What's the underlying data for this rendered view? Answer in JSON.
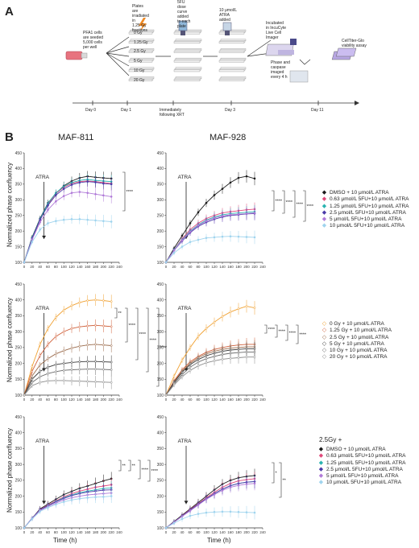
{
  "panelA": {
    "letter": "A",
    "steps": {
      "seed": [
        "PFA1 cells",
        "are seeded",
        "5,000 cells",
        "per well"
      ],
      "irradiate": [
        "Plates",
        "are",
        "irradiated",
        "in",
        "1.25 Gy",
        "fractions"
      ],
      "fu": [
        "5FU",
        "dose",
        "curve",
        "added",
        "to each",
        "plate"
      ],
      "atra": [
        "10 μmol/L",
        "ATRA",
        "added"
      ],
      "incubate": [
        "Incubated",
        "in IncuCyte",
        "Live Cell",
        "Imager"
      ],
      "phase": [
        "Phase and",
        "caspase",
        "imaged",
        "every 4 h"
      ],
      "ctg": [
        "CellTiter-Glo",
        "viability assay"
      ]
    },
    "doses": [
      "0 Gy",
      "1.25 Gy",
      "2.5 Gy",
      "5 Gy",
      "10 Gy",
      "20 Gy"
    ],
    "timeline": [
      "Day 0",
      "Day 1",
      "Immediately following XRT",
      "Day 3",
      "Day 11"
    ]
  },
  "panelB": {
    "letter": "B",
    "col_titles": [
      "MAF-811",
      "MAF-928"
    ],
    "ylabel": "Normalized phase confluency",
    "xlabel": "Time (h)",
    "atra_label": "ATRA",
    "y_ticks": [
      "100",
      "150",
      "200",
      "250",
      "300",
      "350",
      "400",
      "450"
    ],
    "x_ticks": [
      "0",
      "20",
      "40",
      "60",
      "80",
      "100",
      "120",
      "140",
      "160",
      "180",
      "200",
      "220",
      "240"
    ],
    "legend_row1": [
      "DMSO + 10 μmol/L ATRA",
      "0.63 μmol/L 5FU+10 μmol/L ATRA",
      "1.25 μmol/L 5FU+10 μmol/L ATRA",
      "2.5 μmol/L 5FU+10 μmol/L ATRA",
      "5 μmol/L 5FU+10 μmol/L ATRA",
      "10 μmol/L 5FU+10 μmol/L ATRA"
    ],
    "legend_row2": [
      "0 Gy + 10 μmol/L ATRA",
      "1.25 Gy + 10 μmol/L ATRA",
      "2.5 Gy + 10 μmol/L ATRA",
      "5 Gy + 10 μmol/L ATRA",
      "10 Gy + 10 μmol/L ATRA",
      "20 Gy + 10 μmol/L ATRA"
    ],
    "legend_row3_title": "2.5Gy +",
    "legend_row3": [
      "DMSO + 10 μmol/L ATRA",
      "0.63 μmol/L 5FU+10 μmol/L ATRA",
      "1.25 μmol/L 5FU+10 μmol/L ATRA",
      "2.5 μmol/L 5FU+10 μmol/L ATRA",
      "5 μmol/L 5FU+10 μmol/L ATRA",
      "10 μmol/L 5FU+10 μmol/L ATRA"
    ],
    "sig": {
      "r1l": [
        "****"
      ],
      "r1r": [
        "****",
        "****",
        "****",
        "****"
      ],
      "r2l": [
        "**",
        "****",
        "****",
        "****",
        "****"
      ],
      "r2r": [
        "****",
        "****",
        "****",
        "****"
      ],
      "r3l": [
        "**",
        "**",
        "****",
        "****"
      ],
      "r3r": [
        "*",
        "**"
      ]
    },
    "colors": [
      "#1a1a1a",
      "#e0487a",
      "#2ab3b0",
      "#4a3aa8",
      "#b07ad8",
      "#9fd4ee"
    ],
    "colors_row2": [
      "#f0a030",
      "#d0603a",
      "#9a6a4a",
      "#3a3a3a",
      "#6a6a6a",
      "#8a8a8a"
    ]
  },
  "chart_data": [
    {
      "type": "line",
      "title": "MAF-811",
      "xlabel": "Time (h)",
      "ylabel": "Normalized phase confluency",
      "ylim": [
        100,
        450
      ],
      "x": [
        0,
        20,
        40,
        60,
        80,
        100,
        120,
        140,
        160,
        180,
        200,
        220
      ],
      "series": [
        {
          "name": "DMSO + 10 μmol/L ATRA",
          "values": [
            100,
            180,
            240,
            290,
            320,
            345,
            360,
            370,
            375,
            372,
            370,
            368
          ]
        },
        {
          "name": "0.63 μmol/L 5FU+10 μmol/L ATRA",
          "values": [
            100,
            175,
            235,
            285,
            320,
            340,
            352,
            358,
            360,
            358,
            355,
            352
          ]
        },
        {
          "name": "1.25 μmol/L 5FU+10 μmol/L ATRA",
          "values": [
            100,
            178,
            238,
            288,
            322,
            343,
            355,
            362,
            365,
            362,
            360,
            358
          ]
        },
        {
          "name": "2.5 μmol/L 5FU+10 μmol/L ATRA",
          "values": [
            100,
            176,
            236,
            282,
            315,
            335,
            348,
            355,
            358,
            356,
            352,
            350
          ]
        },
        {
          "name": "5 μmol/L 5FU+10 μmol/L ATRA",
          "values": [
            100,
            172,
            228,
            268,
            295,
            312,
            322,
            325,
            322,
            318,
            314,
            310
          ]
        },
        {
          "name": "10 μmol/L 5FU+10 μmol/L ATRA",
          "values": [
            100,
            165,
            205,
            225,
            232,
            236,
            238,
            238,
            236,
            234,
            232,
            230
          ]
        }
      ]
    },
    {
      "type": "line",
      "title": "MAF-928",
      "xlabel": "Time (h)",
      "ylabel": "Normalized phase confluency",
      "ylim": [
        100,
        450
      ],
      "x": [
        0,
        20,
        40,
        60,
        80,
        100,
        120,
        140,
        160,
        180,
        200,
        220
      ],
      "series": [
        {
          "name": "DMSO + 10 μmol/L ATRA",
          "values": [
            100,
            145,
            185,
            225,
            260,
            290,
            315,
            335,
            355,
            370,
            375,
            368
          ]
        },
        {
          "name": "0.63 μmol/L 5FU+10 μmol/L ATRA",
          "values": [
            100,
            140,
            175,
            205,
            225,
            240,
            250,
            258,
            262,
            265,
            268,
            270
          ]
        },
        {
          "name": "1.25 μmol/L 5FU+10 μmol/L ATRA",
          "values": [
            100,
            140,
            172,
            200,
            220,
            235,
            245,
            252,
            256,
            258,
            260,
            262
          ]
        },
        {
          "name": "2.5 μmol/L 5FU+10 μmol/L ATRA",
          "values": [
            100,
            138,
            168,
            195,
            215,
            228,
            238,
            245,
            250,
            252,
            255,
            256
          ]
        },
        {
          "name": "5 μmol/L 5FU+10 μmol/L ATRA",
          "values": [
            100,
            138,
            170,
            198,
            218,
            232,
            242,
            248,
            252,
            254,
            256,
            258
          ]
        },
        {
          "name": "10 μmol/L 5FU+10 μmol/L ATRA",
          "values": [
            100,
            130,
            150,
            165,
            172,
            178,
            180,
            182,
            183,
            182,
            181,
            180
          ]
        }
      ]
    },
    {
      "type": "line",
      "title": "",
      "xlabel": "Time (h)",
      "ylabel": "Normalized phase confluency",
      "ylim": [
        100,
        450
      ],
      "x": [
        0,
        20,
        40,
        60,
        80,
        100,
        120,
        140,
        160,
        180,
        200,
        220
      ],
      "series": [
        {
          "name": "0 Gy + 10 μmol/L ATRA",
          "values": [
            100,
            190,
            260,
            310,
            345,
            368,
            382,
            392,
            398,
            400,
            398,
            395
          ]
        },
        {
          "name": "1.25 Gy + 10 μmol/L ATRA",
          "values": [
            100,
            175,
            225,
            260,
            285,
            300,
            310,
            315,
            318,
            320,
            318,
            316
          ]
        },
        {
          "name": "2.5 Gy + 10 μmol/L ATRA",
          "values": [
            100,
            160,
            195,
            215,
            230,
            240,
            248,
            254,
            258,
            260,
            258,
            256
          ]
        },
        {
          "name": "5 Gy + 10 μmol/L ATRA",
          "values": [
            100,
            150,
            175,
            188,
            196,
            200,
            203,
            205,
            206,
            206,
            205,
            204
          ]
        },
        {
          "name": "10 Gy + 10 μmol/L ATRA",
          "values": [
            100,
            140,
            158,
            168,
            174,
            178,
            180,
            181,
            182,
            182,
            181,
            180
          ]
        },
        {
          "name": "20 Gy + 10 μmol/L ATRA",
          "values": [
            100,
            130,
            140,
            145,
            146,
            146,
            145,
            144,
            143,
            142,
            141,
            140
          ]
        }
      ]
    },
    {
      "type": "line",
      "title": "",
      "xlabel": "Time (h)",
      "ylabel": "Normalized phase confluency",
      "ylim": [
        100,
        450
      ],
      "x": [
        0,
        20,
        40,
        60,
        80,
        100,
        120,
        140,
        160,
        180,
        200,
        220
      ],
      "series": [
        {
          "name": "0 Gy + 10 μmol/L ATRA",
          "values": [
            100,
            160,
            210,
            250,
            285,
            310,
            330,
            348,
            362,
            372,
            380,
            375
          ]
        },
        {
          "name": "1.25 Gy + 10 μmol/L ATRA",
          "values": [
            100,
            145,
            180,
            205,
            222,
            235,
            244,
            250,
            255,
            258,
            260,
            260
          ]
        },
        {
          "name": "2.5 Gy + 10 μmol/L ATRA",
          "values": [
            100,
            142,
            175,
            200,
            218,
            230,
            238,
            244,
            248,
            250,
            252,
            252
          ]
        },
        {
          "name": "5 Gy + 10 μmol/L ATRA",
          "values": [
            100,
            140,
            172,
            196,
            212,
            224,
            232,
            238,
            242,
            244,
            246,
            246
          ]
        },
        {
          "name": "10 Gy + 10 μmol/L ATRA",
          "values": [
            100,
            136,
            165,
            188,
            204,
            215,
            222,
            228,
            232,
            234,
            236,
            236
          ]
        },
        {
          "name": "20 Gy + 10 μmol/L ATRA",
          "values": [
            100,
            132,
            158,
            178,
            192,
            202,
            208,
            213,
            216,
            218,
            220,
            220
          ]
        }
      ]
    },
    {
      "type": "line",
      "title": "",
      "xlabel": "Time (h)",
      "ylabel": "Normalized phase confluency",
      "ylim": [
        100,
        450
      ],
      "x": [
        0,
        20,
        40,
        60,
        80,
        100,
        120,
        140,
        160,
        180,
        200,
        220
      ],
      "series": [
        {
          "name": "DMSO + 10 μmol/L ATRA",
          "values": [
            100,
            130,
            160,
            175,
            190,
            205,
            215,
            225,
            232,
            240,
            248,
            255
          ]
        },
        {
          "name": "0.63 μmol/L 5FU+10 μmol/L ATRA",
          "values": [
            100,
            130,
            158,
            172,
            185,
            198,
            208,
            216,
            222,
            228,
            232,
            236
          ]
        },
        {
          "name": "1.25 μmol/L 5FU+10 μmol/L ATRA",
          "values": [
            100,
            130,
            157,
            170,
            183,
            195,
            204,
            211,
            216,
            220,
            224,
            226
          ]
        },
        {
          "name": "2.5 μmol/L 5FU+10 μmol/L ATRA",
          "values": [
            100,
            130,
            157,
            170,
            182,
            193,
            202,
            208,
            213,
            216,
            219,
            220
          ]
        },
        {
          "name": "5 μmol/L 5FU+10 μmol/L ATRA",
          "values": [
            100,
            129,
            155,
            167,
            178,
            188,
            195,
            200,
            204,
            206,
            208,
            210
          ]
        },
        {
          "name": "10 μmol/L 5FU+10 μmol/L ATRA",
          "values": [
            100,
            128,
            152,
            164,
            174,
            182,
            188,
            192,
            195,
            197,
            198,
            200
          ]
        }
      ]
    },
    {
      "type": "line",
      "title": "",
      "xlabel": "Time (h)",
      "ylabel": "Normalized phase confluency",
      "ylim": [
        100,
        450
      ],
      "x": [
        0,
        20,
        40,
        60,
        80,
        100,
        120,
        140,
        160,
        180,
        200,
        220
      ],
      "series": [
        {
          "name": "DMSO + 10 μmol/L ATRA",
          "values": [
            100,
            120,
            140,
            160,
            180,
            200,
            220,
            238,
            250,
            258,
            262,
            265
          ]
        },
        {
          "name": "0.63 μmol/L 5FU+10 μmol/L ATRA",
          "values": [
            100,
            118,
            138,
            158,
            176,
            195,
            212,
            228,
            240,
            248,
            252,
            255
          ]
        },
        {
          "name": "1.25 μmol/L 5FU+10 μmol/L ATRA",
          "values": [
            100,
            118,
            137,
            156,
            174,
            192,
            208,
            222,
            233,
            240,
            244,
            246
          ]
        },
        {
          "name": "2.5 μmol/L 5FU+10 μmol/L ATRA",
          "values": [
            100,
            118,
            137,
            156,
            174,
            192,
            208,
            222,
            233,
            240,
            244,
            246
          ]
        },
        {
          "name": "5 μmol/L 5FU+10 μmol/L ATRA",
          "values": [
            100,
            118,
            136,
            154,
            172,
            190,
            205,
            218,
            228,
            234,
            238,
            240
          ]
        },
        {
          "name": "10 μmol/L 5FU+10 μmol/L ATRA",
          "values": [
            100,
            115,
            128,
            138,
            144,
            148,
            150,
            151,
            151,
            150,
            149,
            148
          ]
        }
      ]
    }
  ]
}
